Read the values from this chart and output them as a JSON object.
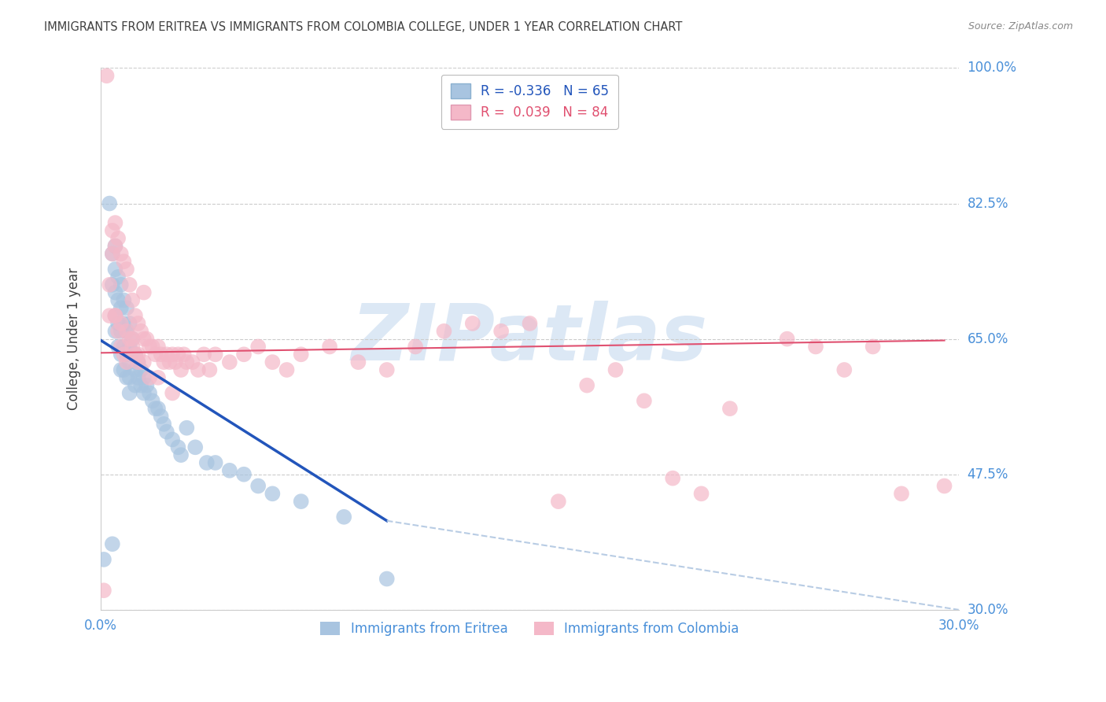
{
  "title": "IMMIGRANTS FROM ERITREA VS IMMIGRANTS FROM COLOMBIA COLLEGE, UNDER 1 YEAR CORRELATION CHART",
  "source": "Source: ZipAtlas.com",
  "ylabel": "College, Under 1 year",
  "xlim": [
    0.0,
    0.3
  ],
  "ylim": [
    0.3,
    1.0
  ],
  "yticks": [
    0.3,
    0.475,
    0.65,
    0.825,
    1.0
  ],
  "xticks": [
    0.0,
    0.3
  ],
  "legend1_label": "R = -0.336   N = 65",
  "legend2_label": "R =  0.039   N = 84",
  "legend_bottom1": "Immigrants from Eritrea",
  "legend_bottom2": "Immigrants from Colombia",
  "blue_color": "#a8c4e0",
  "pink_color": "#f4b8c8",
  "blue_line_color": "#2255bb",
  "pink_line_color": "#e05070",
  "blue_dash_color": "#b8cce4",
  "title_color": "#404040",
  "axis_label_color": "#4a90d9",
  "background_color": "#ffffff",
  "watermark_text": "ZIPatlas",
  "watermark_color": "#dce8f5",
  "grid_color": "#cccccc",
  "eritrea_x": [
    0.001,
    0.003,
    0.004,
    0.004,
    0.004,
    0.005,
    0.005,
    0.005,
    0.005,
    0.005,
    0.006,
    0.006,
    0.006,
    0.006,
    0.007,
    0.007,
    0.007,
    0.007,
    0.007,
    0.008,
    0.008,
    0.008,
    0.008,
    0.009,
    0.009,
    0.009,
    0.009,
    0.01,
    0.01,
    0.01,
    0.01,
    0.01,
    0.011,
    0.011,
    0.012,
    0.012,
    0.012,
    0.013,
    0.013,
    0.014,
    0.014,
    0.015,
    0.015,
    0.016,
    0.017,
    0.018,
    0.019,
    0.02,
    0.021,
    0.022,
    0.023,
    0.025,
    0.027,
    0.028,
    0.03,
    0.033,
    0.037,
    0.04,
    0.045,
    0.05,
    0.055,
    0.06,
    0.07,
    0.085,
    0.1
  ],
  "eritrea_y": [
    0.365,
    0.825,
    0.385,
    0.76,
    0.72,
    0.77,
    0.74,
    0.71,
    0.68,
    0.66,
    0.73,
    0.7,
    0.67,
    0.64,
    0.72,
    0.69,
    0.66,
    0.63,
    0.61,
    0.7,
    0.67,
    0.64,
    0.61,
    0.69,
    0.66,
    0.63,
    0.6,
    0.67,
    0.64,
    0.62,
    0.6,
    0.58,
    0.65,
    0.63,
    0.63,
    0.61,
    0.59,
    0.62,
    0.6,
    0.61,
    0.59,
    0.6,
    0.58,
    0.59,
    0.58,
    0.57,
    0.56,
    0.56,
    0.55,
    0.54,
    0.53,
    0.52,
    0.51,
    0.5,
    0.535,
    0.51,
    0.49,
    0.49,
    0.48,
    0.475,
    0.46,
    0.45,
    0.44,
    0.42,
    0.34
  ],
  "colombia_x": [
    0.001,
    0.002,
    0.003,
    0.004,
    0.004,
    0.005,
    0.005,
    0.005,
    0.006,
    0.006,
    0.007,
    0.007,
    0.008,
    0.008,
    0.009,
    0.009,
    0.01,
    0.01,
    0.011,
    0.011,
    0.012,
    0.012,
    0.013,
    0.013,
    0.014,
    0.015,
    0.015,
    0.016,
    0.017,
    0.018,
    0.019,
    0.02,
    0.021,
    0.022,
    0.023,
    0.024,
    0.025,
    0.026,
    0.027,
    0.028,
    0.029,
    0.03,
    0.032,
    0.034,
    0.036,
    0.038,
    0.04,
    0.045,
    0.05,
    0.055,
    0.06,
    0.065,
    0.07,
    0.08,
    0.09,
    0.1,
    0.11,
    0.12,
    0.13,
    0.14,
    0.15,
    0.16,
    0.17,
    0.18,
    0.19,
    0.2,
    0.21,
    0.22,
    0.24,
    0.25,
    0.26,
    0.27,
    0.28,
    0.295,
    0.003,
    0.005,
    0.007,
    0.009,
    0.011,
    0.013,
    0.015,
    0.017,
    0.02,
    0.025
  ],
  "colombia_y": [
    0.325,
    0.99,
    0.72,
    0.79,
    0.76,
    0.8,
    0.77,
    0.68,
    0.78,
    0.66,
    0.76,
    0.64,
    0.75,
    0.63,
    0.74,
    0.62,
    0.72,
    0.65,
    0.7,
    0.64,
    0.68,
    0.63,
    0.67,
    0.62,
    0.66,
    0.71,
    0.65,
    0.65,
    0.64,
    0.64,
    0.63,
    0.64,
    0.63,
    0.62,
    0.63,
    0.62,
    0.63,
    0.62,
    0.63,
    0.61,
    0.63,
    0.62,
    0.62,
    0.61,
    0.63,
    0.61,
    0.63,
    0.62,
    0.63,
    0.64,
    0.62,
    0.61,
    0.63,
    0.64,
    0.62,
    0.61,
    0.64,
    0.66,
    0.67,
    0.66,
    0.67,
    0.44,
    0.59,
    0.61,
    0.57,
    0.47,
    0.45,
    0.56,
    0.65,
    0.64,
    0.61,
    0.64,
    0.45,
    0.46,
    0.68,
    0.68,
    0.67,
    0.66,
    0.65,
    0.63,
    0.62,
    0.6,
    0.6,
    0.58
  ],
  "blue_trendline": [
    [
      0.0,
      0.648
    ],
    [
      0.1,
      0.415
    ]
  ],
  "blue_dash_trendline": [
    [
      0.1,
      0.415
    ],
    [
      0.3,
      0.3
    ]
  ],
  "pink_trendline": [
    [
      0.0,
      0.632
    ],
    [
      0.295,
      0.648
    ]
  ]
}
